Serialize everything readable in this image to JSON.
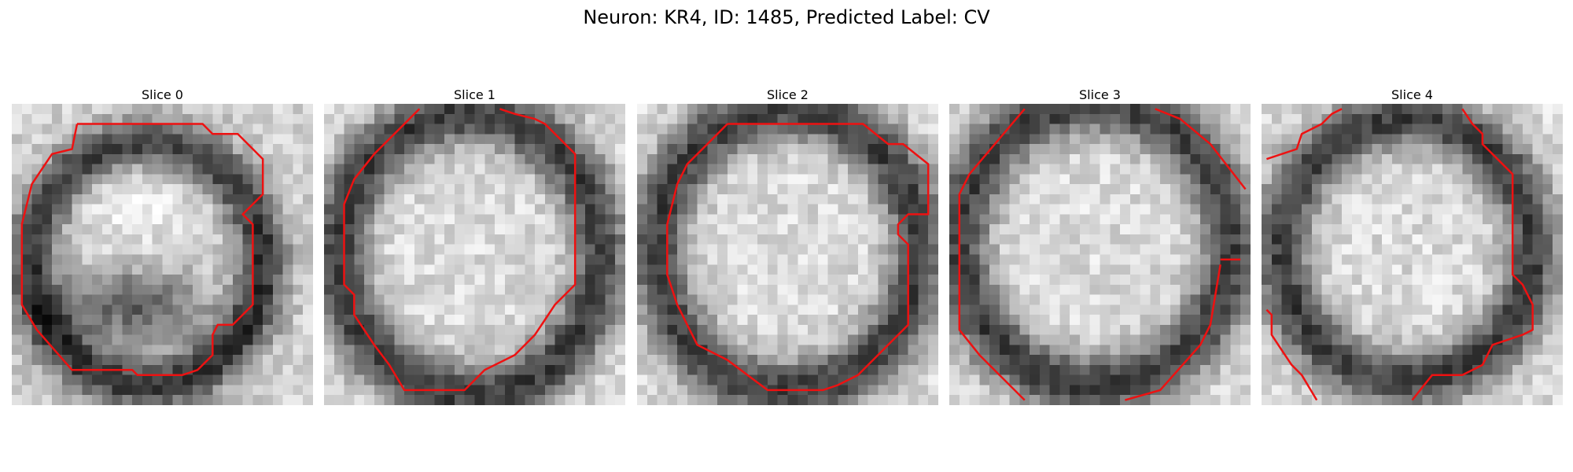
{
  "figure": {
    "title": "Neuron: KR4, ID: 1485, Predicted Label: CV"
  },
  "colors": {
    "contour": "#ee1111"
  },
  "panels": [
    {
      "title": "Slice 0"
    },
    {
      "title": "Slice 1"
    },
    {
      "title": "Slice 2"
    },
    {
      "title": "Slice 3"
    },
    {
      "title": "Slice 4"
    }
  ]
}
